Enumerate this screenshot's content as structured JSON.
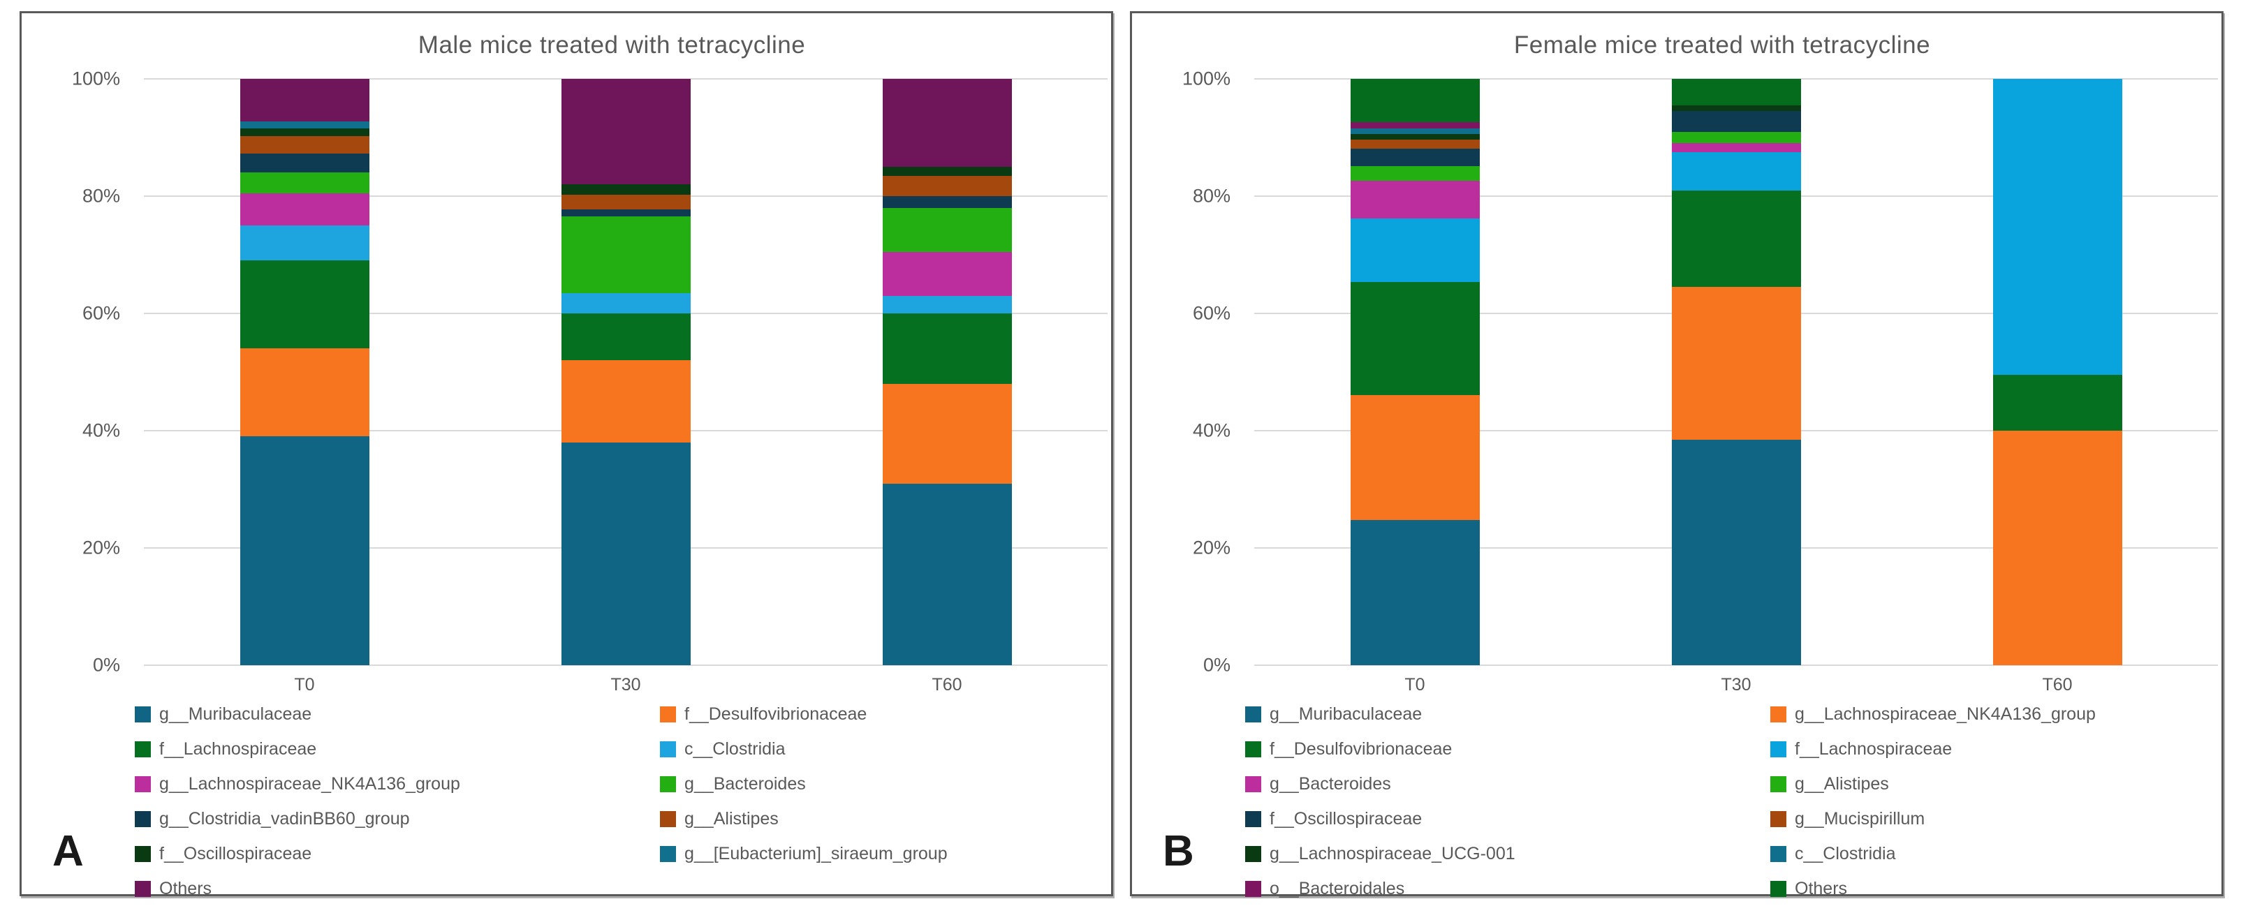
{
  "page": {
    "background": "#FFFFFF",
    "text_color": "#595959",
    "grid_color": "#D9D9D9",
    "panel_border_color": "#595959"
  },
  "chart_data": [
    {
      "type": "bar",
      "stacked": true,
      "units": "percent",
      "panel_label": "A",
      "title": "Male mice treated with tetracycline",
      "xlabel": "",
      "ylabel": "",
      "ylim": [
        0,
        100
      ],
      "grid": true,
      "legend_position": "bottom",
      "legend_columns": 2,
      "y_ticks": [
        "100%",
        "80%",
        "60%",
        "40%",
        "20%",
        "0%"
      ],
      "categories": [
        "T0",
        "T30",
        "T60"
      ],
      "series": [
        {
          "name": "g__Muribaculaceae",
          "color": "#0F6583",
          "values": [
            39,
            38,
            31
          ]
        },
        {
          "name": "f__Desulfovibrionaceae",
          "color": "#F8751F",
          "values": [
            15,
            14,
            17
          ]
        },
        {
          "name": "f__Lachnospiraceae",
          "color": "#05701F",
          "values": [
            15,
            8,
            12
          ]
        },
        {
          "name": "c__Clostridia",
          "color": "#1EA4DE",
          "values": [
            6,
            3.5,
            3
          ]
        },
        {
          "name": "g__Lachnospiraceae_NK4A136_group",
          "color": "#BC2E9E",
          "values": [
            5.5,
            0,
            7.5
          ]
        },
        {
          "name": "g__Bacteroides",
          "color": "#23AF12",
          "values": [
            3.5,
            13,
            7.5
          ]
        },
        {
          "name": "g__Clostridia_vadinBB60_group",
          "color": "#0E3A52",
          "values": [
            3.3,
            1.3,
            2
          ]
        },
        {
          "name": "g__Alistipes",
          "color": "#A4480D",
          "values": [
            3,
            2.4,
            3.5
          ]
        },
        {
          "name": "f__Oscillospiraceae",
          "color": "#093A11",
          "values": [
            1.2,
            1.8,
            1.5
          ]
        },
        {
          "name": "g__[Eubacterium]_siraeum_group",
          "color": "#10708D",
          "values": [
            1.2,
            0,
            0
          ]
        },
        {
          "name": "Others",
          "color": "#6E1659",
          "values": [
            7.3,
            18,
            15
          ]
        }
      ]
    },
    {
      "type": "bar",
      "stacked": true,
      "units": "percent",
      "panel_label": "B",
      "title": "Female mice treated with tetracycline",
      "xlabel": "",
      "ylabel": "",
      "ylim": [
        0,
        100
      ],
      "grid": true,
      "legend_position": "bottom",
      "legend_columns": 2,
      "y_ticks": [
        "100%",
        "80%",
        "60%",
        "40%",
        "20%",
        "0%"
      ],
      "categories": [
        "T0",
        "T30",
        "T60"
      ],
      "series": [
        {
          "name": "g__Muribaculaceae",
          "color": "#0F6583",
          "values": [
            25,
            38.5,
            0
          ]
        },
        {
          "name": "g__Lachnospiraceae_NK4A136_group",
          "color": "#F8751F",
          "values": [
            21.5,
            26,
            40
          ]
        },
        {
          "name": "f__Desulfovibrionaceae",
          "color": "#05701F",
          "values": [
            19.5,
            16.5,
            9.5
          ]
        },
        {
          "name": "f__Lachnospiraceae",
          "color": "#09A3DD",
          "values": [
            11,
            6.5,
            50.5
          ]
        },
        {
          "name": "g__Bacteroides",
          "color": "#BC2E9E",
          "values": [
            6.5,
            1.5,
            0
          ]
        },
        {
          "name": "g__Alistipes",
          "color": "#23AF12",
          "values": [
            2.5,
            2,
            0
          ]
        },
        {
          "name": "f__Oscillospiraceae",
          "color": "#0E3A52",
          "values": [
            3,
            3.5,
            0
          ]
        },
        {
          "name": "g__Mucispirillum",
          "color": "#A4480D",
          "values": [
            1.5,
            0,
            0
          ]
        },
        {
          "name": "g__Lachnospiraceae_UCG-001",
          "color": "#093A11",
          "values": [
            1,
            1,
            0
          ]
        },
        {
          "name": "c__Clostridia",
          "color": "#0F6F8D",
          "values": [
            1,
            0,
            0
          ]
        },
        {
          "name": "o__Bacteroidales",
          "color": "#7E1560",
          "values": [
            1,
            0,
            0
          ]
        },
        {
          "name": "Others",
          "color": "#056B1D",
          "values": [
            7.5,
            4.5,
            0
          ]
        }
      ]
    }
  ]
}
